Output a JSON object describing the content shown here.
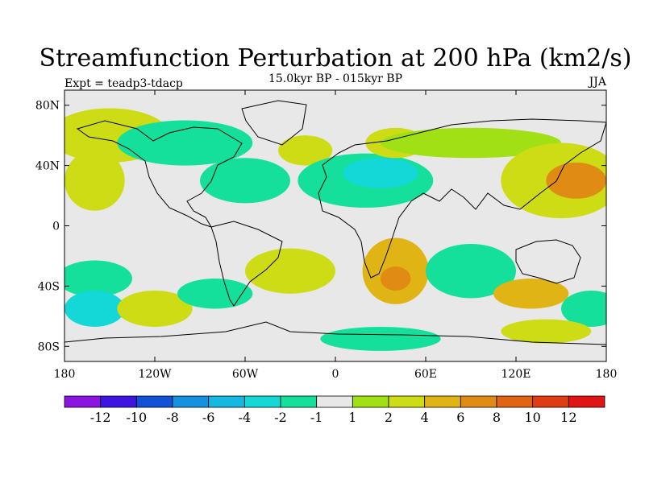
{
  "chart_data": {
    "type": "heatmap",
    "title": "Streamfunction Perturbation at 200 hPa (km2/s)",
    "subtitle": "15.0kyr BP - 015kyr BP",
    "left_label": "Expt = teadp3-tdacp",
    "right_label": "JJA",
    "x_ticks": [
      "180",
      "120W",
      "60W",
      "0",
      "60E",
      "120E",
      "180"
    ],
    "x_tick_values": [
      -180,
      -120,
      -60,
      0,
      60,
      120,
      180
    ],
    "y_ticks": [
      "80N",
      "40N",
      "0",
      "40S",
      "80S"
    ],
    "y_tick_values": [
      80,
      40,
      0,
      -40,
      -80
    ],
    "xlim": [
      -180,
      180
    ],
    "ylim": [
      -90,
      90
    ],
    "colorbar": {
      "labels": [
        "-12",
        "-10",
        "-8",
        "-6",
        "-4",
        "-2",
        "-1",
        "1",
        "2",
        "4",
        "6",
        "8",
        "10",
        "12"
      ],
      "colors": [
        "#8c14e0",
        "#3d14e0",
        "#1450d6",
        "#1492e0",
        "#14b8e0",
        "#14d8d8",
        "#14e09c",
        "#e8e8e8",
        "#a0e014",
        "#cddc14",
        "#e0b414",
        "#e08c14",
        "#e06414",
        "#e03c14",
        "#e01414"
      ]
    },
    "anomaly_blobs": [
      {
        "lon": -150,
        "lat": 60,
        "rx": 40,
        "ry": 18,
        "level": 2
      },
      {
        "lon": -100,
        "lat": 55,
        "rx": 45,
        "ry": 15,
        "level": -2
      },
      {
        "lon": -60,
        "lat": 30,
        "rx": 30,
        "ry": 15,
        "level": -2
      },
      {
        "lon": -20,
        "lat": 50,
        "rx": 18,
        "ry": 10,
        "level": 2
      },
      {
        "lon": 20,
        "lat": 30,
        "rx": 45,
        "ry": 18,
        "level": -2
      },
      {
        "lon": 30,
        "lat": 35,
        "rx": 25,
        "ry": 10,
        "level": -4
      },
      {
        "lon": 40,
        "lat": 55,
        "rx": 20,
        "ry": 10,
        "level": 2
      },
      {
        "lon": 90,
        "lat": 55,
        "rx": 60,
        "ry": 10,
        "level": 1
      },
      {
        "lon": 150,
        "lat": 30,
        "rx": 40,
        "ry": 25,
        "level": 2
      },
      {
        "lon": 160,
        "lat": 30,
        "rx": 20,
        "ry": 12,
        "level": 6
      },
      {
        "lon": -160,
        "lat": 30,
        "rx": 20,
        "ry": 20,
        "level": 2
      },
      {
        "lon": -30,
        "lat": -30,
        "rx": 30,
        "ry": 15,
        "level": 2
      },
      {
        "lon": 40,
        "lat": -30,
        "rx": 22,
        "ry": 22,
        "level": 4
      },
      {
        "lon": 40,
        "lat": -35,
        "rx": 10,
        "ry": 8,
        "level": 6
      },
      {
        "lon": 90,
        "lat": -30,
        "rx": 30,
        "ry": 18,
        "level": -2
      },
      {
        "lon": -160,
        "lat": -35,
        "rx": 25,
        "ry": 12,
        "level": -2
      },
      {
        "lon": -160,
        "lat": -55,
        "rx": 20,
        "ry": 12,
        "level": -4
      },
      {
        "lon": -120,
        "lat": -55,
        "rx": 25,
        "ry": 12,
        "level": 2
      },
      {
        "lon": -80,
        "lat": -45,
        "rx": 25,
        "ry": 10,
        "level": -2
      },
      {
        "lon": 130,
        "lat": -45,
        "rx": 25,
        "ry": 10,
        "level": 4
      },
      {
        "lon": 170,
        "lat": -55,
        "rx": 20,
        "ry": 12,
        "level": -2
      },
      {
        "lon": 30,
        "lat": -75,
        "rx": 40,
        "ry": 8,
        "level": -2
      },
      {
        "lon": 140,
        "lat": -70,
        "rx": 30,
        "ry": 8,
        "level": 2
      }
    ]
  }
}
